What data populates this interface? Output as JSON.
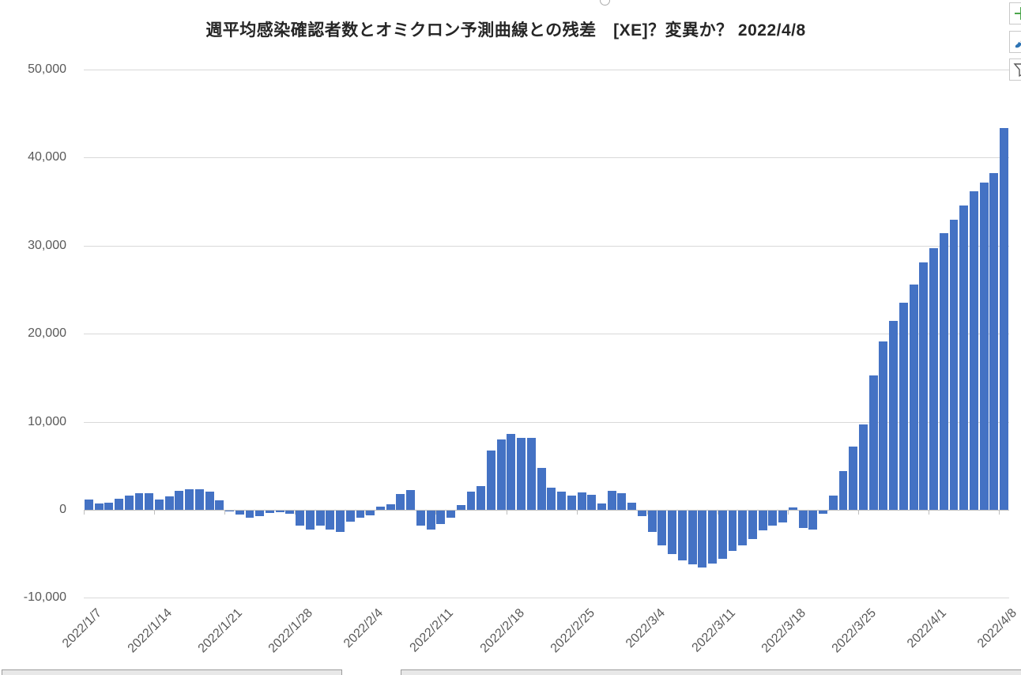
{
  "window": {
    "app_context": "spreadsheet-embedded-chart",
    "selection_handle": "top-center-resize-handle"
  },
  "chart_data": {
    "type": "bar",
    "title": "週平均感染確認者数とオミクロン予測曲線との残差　[XE]？変異か？ 2022/4/8",
    "xlabel": "",
    "ylabel": "",
    "ylim": [
      -10000,
      50000
    ],
    "grid": "horizontal",
    "legend": "none",
    "bar_color": "#4472C4",
    "ytick_values": [
      50000,
      40000,
      30000,
      20000,
      10000,
      0,
      -10000
    ],
    "ytick_labels": [
      "50,000",
      "40,000",
      "30,000",
      "20,000",
      "10,000",
      "0",
      "-10,000"
    ],
    "xtick_labels": [
      "2022/1/7",
      "2022/1/14",
      "2022/1/21",
      "2022/1/28",
      "2022/2/4",
      "2022/2/11",
      "2022/2/18",
      "2022/2/25",
      "2022/3/4",
      "2022/3/11",
      "2022/3/18",
      "2022/3/25",
      "2022/4/1",
      "2022/4/8"
    ],
    "x_interval": "daily",
    "x": [
      "2022/1/7",
      "2022/1/8",
      "2022/1/9",
      "2022/1/10",
      "2022/1/11",
      "2022/1/12",
      "2022/1/13",
      "2022/1/14",
      "2022/1/15",
      "2022/1/16",
      "2022/1/17",
      "2022/1/18",
      "2022/1/19",
      "2022/1/20",
      "2022/1/21",
      "2022/1/22",
      "2022/1/23",
      "2022/1/24",
      "2022/1/25",
      "2022/1/26",
      "2022/1/27",
      "2022/1/28",
      "2022/1/29",
      "2022/1/30",
      "2022/1/31",
      "2022/2/1",
      "2022/2/2",
      "2022/2/3",
      "2022/2/4",
      "2022/2/5",
      "2022/2/6",
      "2022/2/7",
      "2022/2/8",
      "2022/2/9",
      "2022/2/10",
      "2022/2/11",
      "2022/2/12",
      "2022/2/13",
      "2022/2/14",
      "2022/2/15",
      "2022/2/16",
      "2022/2/17",
      "2022/2/18",
      "2022/2/19",
      "2022/2/20",
      "2022/2/21",
      "2022/2/22",
      "2022/2/23",
      "2022/2/24",
      "2022/2/25",
      "2022/2/26",
      "2022/2/27",
      "2022/2/28",
      "2022/3/1",
      "2022/3/2",
      "2022/3/3",
      "2022/3/4",
      "2022/3/5",
      "2022/3/6",
      "2022/3/7",
      "2022/3/8",
      "2022/3/9",
      "2022/3/10",
      "2022/3/11",
      "2022/3/12",
      "2022/3/13",
      "2022/3/14",
      "2022/3/15",
      "2022/3/16",
      "2022/3/17",
      "2022/3/18",
      "2022/3/19",
      "2022/3/20",
      "2022/3/21",
      "2022/3/22",
      "2022/3/23",
      "2022/3/24",
      "2022/3/25",
      "2022/3/26",
      "2022/3/27",
      "2022/3/28",
      "2022/3/29",
      "2022/3/30",
      "2022/3/31",
      "2022/4/1",
      "2022/4/2",
      "2022/4/3",
      "2022/4/4",
      "2022/4/5",
      "2022/4/6",
      "2022/4/7",
      "2022/4/8"
    ],
    "values": [
      1150,
      700,
      850,
      1300,
      1650,
      1900,
      1900,
      1150,
      1500,
      2150,
      2350,
      2300,
      2050,
      1100,
      -120,
      -480,
      -840,
      -600,
      -270,
      -210,
      -330,
      -1730,
      -2150,
      -1730,
      -2150,
      -2390,
      -1250,
      -840,
      -540,
      390,
      660,
      1800,
      2210,
      -1730,
      -2150,
      -1500,
      -840,
      550,
      2100,
      2700,
      6700,
      7950,
      8620,
      8200,
      8200,
      4750,
      2540,
      2090,
      1620,
      1980,
      1710,
      720,
      2180,
      1850,
      780,
      -630,
      -2420,
      -3950,
      -4930,
      -5650,
      -6100,
      -6460,
      -6010,
      -5470,
      -4570,
      -3950,
      -3200,
      -2250,
      -1750,
      -1350,
      250,
      -2000,
      -2150,
      -400,
      1650,
      4400,
      7200,
      9700,
      15250,
      19100,
      21450,
      23550,
      25600,
      28100,
      29750,
      31450,
      32900,
      34600,
      36200,
      37150,
      38200,
      43400
    ]
  },
  "side_buttons": [
    {
      "name": "chart-elements-button",
      "icon": "plus-icon",
      "color": "#4CA64C"
    },
    {
      "name": "chart-styles-button",
      "icon": "paintbrush-icon",
      "color": "#2E74B5"
    },
    {
      "name": "chart-filters-button",
      "icon": "funnel-icon",
      "color": "#595959"
    }
  ],
  "colors": {
    "bar": "#4472C4",
    "gridline": "#d9d9d9",
    "axis": "#bfbfbf",
    "tick_text": "#595959",
    "title_text": "#262626"
  }
}
